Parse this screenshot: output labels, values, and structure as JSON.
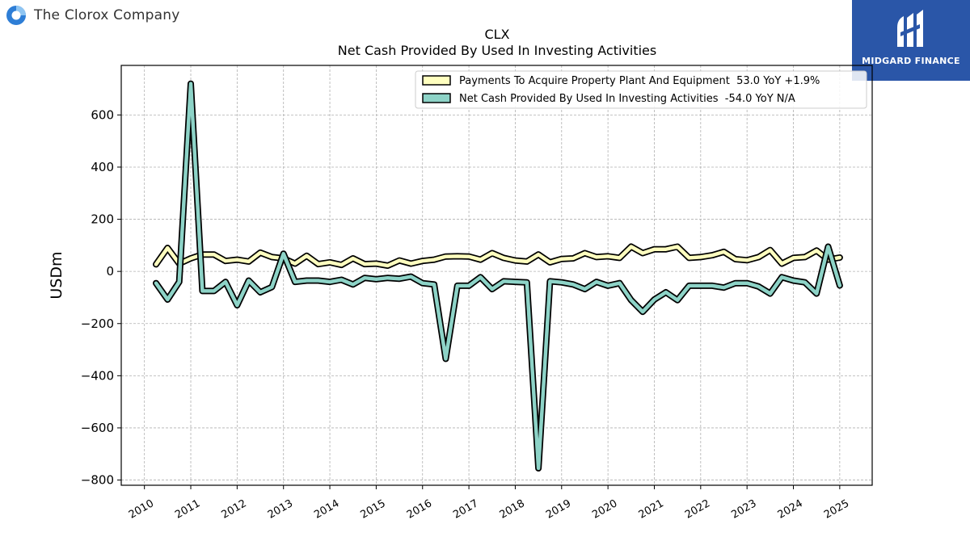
{
  "header": {
    "company_name": "The Clorox Company",
    "logo_icon": "clorox-logo-icon",
    "badge_text": "MIDGARD FINANCE",
    "badge_icon": "midgard-logo-icon",
    "badge_color": "#2a56a8"
  },
  "chart_data": {
    "type": "line",
    "title": "CLX",
    "subtitle": "Net Cash Provided By Used In Investing Activities",
    "xlabel": "",
    "ylabel": "USDm",
    "xlim": [
      2009.5,
      2025.7
    ],
    "ylim": [
      -820,
      790
    ],
    "x_ticks": [
      "2010",
      "2011",
      "2012",
      "2013",
      "2014",
      "2015",
      "2016",
      "2017",
      "2018",
      "2019",
      "2020",
      "2021",
      "2022",
      "2023",
      "2024",
      "2025"
    ],
    "y_ticks": [
      -800,
      -600,
      -400,
      -200,
      0,
      200,
      400,
      600
    ],
    "y_tick_labels": [
      "−800",
      "−600",
      "−400",
      "−200",
      "0",
      "200",
      "400",
      "600"
    ],
    "grid": true,
    "legend_position": "top-right",
    "series": [
      {
        "name": "Payments To Acquire Property Plant And Equipment  53.0 YoY +1.9%",
        "color": "#ffffbf",
        "x": [
          2010.25,
          2010.5,
          2010.75,
          2011.0,
          2011.25,
          2011.5,
          2011.75,
          2012.0,
          2012.25,
          2012.5,
          2012.75,
          2013.0,
          2013.25,
          2013.5,
          2013.75,
          2014.0,
          2014.25,
          2014.5,
          2014.75,
          2015.0,
          2015.25,
          2015.5,
          2015.75,
          2016.0,
          2016.25,
          2016.5,
          2016.75,
          2017.0,
          2017.25,
          2017.5,
          2017.75,
          2018.0,
          2018.25,
          2018.5,
          2018.75,
          2019.0,
          2019.25,
          2019.5,
          2019.75,
          2020.0,
          2020.25,
          2020.5,
          2020.75,
          2021.0,
          2021.25,
          2021.5,
          2021.75,
          2022.0,
          2022.25,
          2022.5,
          2022.75,
          2023.0,
          2023.25,
          2023.5,
          2023.75,
          2024.0,
          2024.25,
          2024.5,
          2024.75,
          2025.0
        ],
        "values": [
          27,
          90,
          30,
          50,
          65,
          65,
          40,
          45,
          38,
          72,
          55,
          50,
          30,
          60,
          28,
          35,
          25,
          50,
          28,
          30,
          22,
          42,
          30,
          40,
          45,
          57,
          58,
          57,
          45,
          70,
          52,
          42,
          38,
          65,
          35,
          48,
          50,
          70,
          55,
          58,
          52,
          95,
          70,
          85,
          85,
          95,
          52,
          55,
          62,
          75,
          47,
          43,
          55,
          82,
          30,
          52,
          55,
          80,
          45,
          53
        ]
      },
      {
        "name": "Net Cash Provided By Used In Investing Activities  -54.0 YoY N/A",
        "color": "#8dd3c7",
        "x": [
          2010.25,
          2010.5,
          2010.75,
          2011.0,
          2011.25,
          2011.5,
          2011.75,
          2012.0,
          2012.25,
          2012.5,
          2012.75,
          2013.0,
          2013.25,
          2013.5,
          2013.75,
          2014.0,
          2014.25,
          2014.5,
          2014.75,
          2015.0,
          2015.25,
          2015.5,
          2015.75,
          2016.0,
          2016.25,
          2016.5,
          2016.75,
          2017.0,
          2017.25,
          2017.5,
          2017.75,
          2018.0,
          2018.25,
          2018.5,
          2018.75,
          2019.0,
          2019.25,
          2019.5,
          2019.75,
          2020.0,
          2020.25,
          2020.5,
          2020.75,
          2021.0,
          2021.25,
          2021.5,
          2021.75,
          2022.0,
          2022.25,
          2022.5,
          2022.75,
          2023.0,
          2023.25,
          2023.5,
          2023.75,
          2024.0,
          2024.25,
          2024.5,
          2024.75,
          2025.0
        ],
        "values": [
          -45,
          -108,
          -40,
          720,
          -75,
          -75,
          -40,
          -130,
          -35,
          -80,
          -60,
          68,
          -40,
          -35,
          -35,
          -40,
          -32,
          -50,
          -25,
          -30,
          -25,
          -28,
          -20,
          -45,
          -50,
          -335,
          -55,
          -55,
          -22,
          -68,
          -38,
          -40,
          -42,
          -755,
          -38,
          -42,
          -50,
          -68,
          -40,
          -55,
          -45,
          -110,
          -155,
          -108,
          -80,
          -110,
          -55,
          -55,
          -55,
          -62,
          -45,
          -45,
          -58,
          -85,
          -22,
          -35,
          -42,
          -85,
          95,
          -54
        ]
      }
    ]
  }
}
